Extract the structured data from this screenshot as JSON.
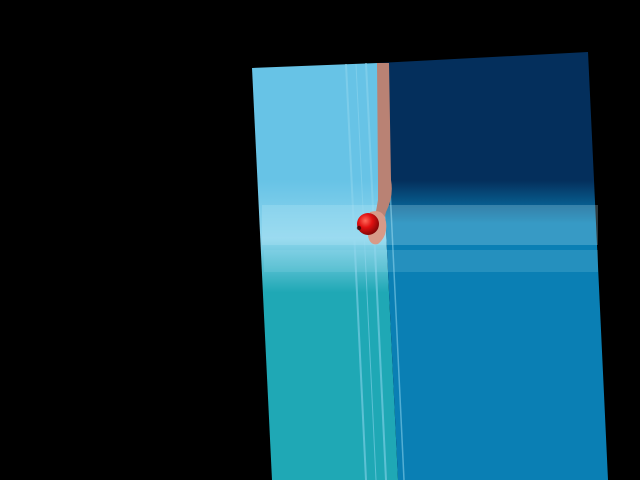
{
  "scene": {
    "background": "#000000",
    "wall_left_upper": "#67c3e6",
    "wall_left_lower": "#1fa8b5",
    "wall_right_upper": "#042f5c",
    "wall_right_lower": "#0a7fb4",
    "seam": "#8fd6ee",
    "arm_color": "#b98274",
    "hand_color": "#d79a88",
    "ball_color": "#e01010",
    "ball_highlight": "#ff6a5a",
    "ball_shadow": "#7a0505",
    "icons": [
      "hand-icon",
      "red-ball-icon"
    ]
  }
}
